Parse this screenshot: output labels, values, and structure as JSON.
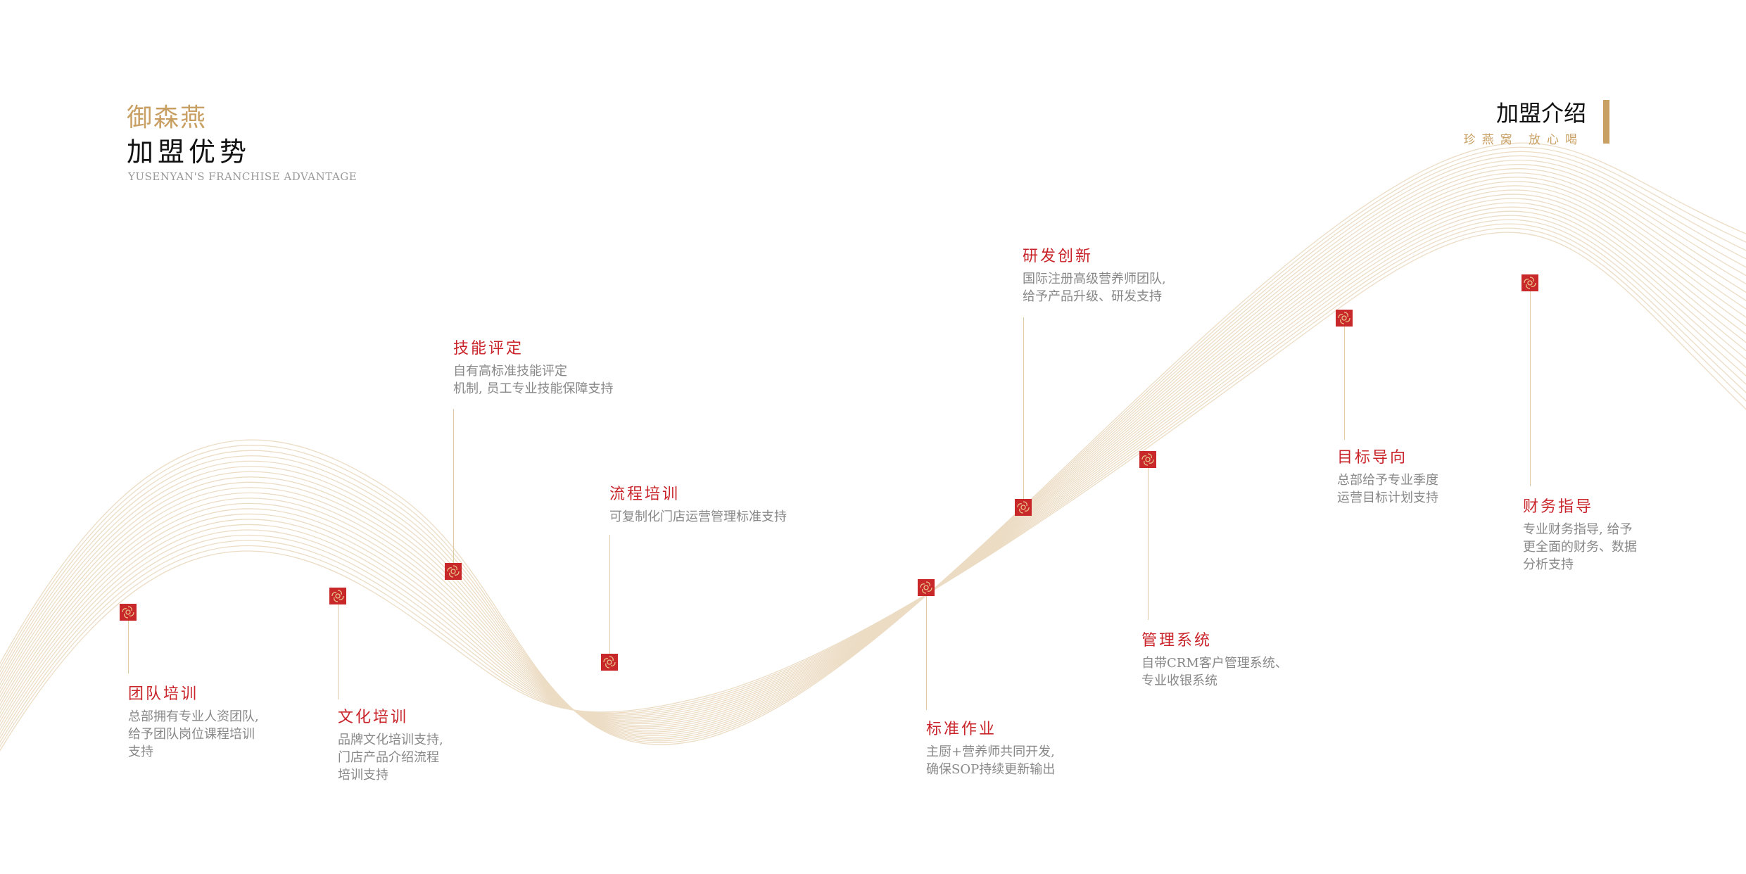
{
  "header": {
    "brand": "御森燕",
    "title": "加盟优势",
    "subtitle_en": "YUSENYAN'S FRANCHISE ADVANTAGE"
  },
  "section": {
    "title": "加盟介绍",
    "slogan": "珍燕窝 放心喝"
  },
  "colors": {
    "accent_gold": "#c9a063",
    "accent_red": "#c8242a",
    "text_gray": "#888888"
  },
  "marker_icon": "swirl-seal-icon",
  "items": [
    {
      "title": "团队培训",
      "desc": [
        "总部拥有专业人资团队,",
        "给予团队岗位课程培训",
        "支持"
      ]
    },
    {
      "title": "文化培训",
      "desc": [
        "品牌文化培训支持,",
        "门店产品介绍流程",
        "培训支持"
      ]
    },
    {
      "title": "技能评定",
      "desc": [
        "自有高标准技能评定",
        "机制, 员工专业技能保障支持"
      ]
    },
    {
      "title": "流程培训",
      "desc": [
        "可复制化门店运营管理标准支持"
      ]
    },
    {
      "title": "标准作业",
      "desc": [
        "主厨+营养师共同开发,",
        "确保SOP持续更新输出"
      ]
    },
    {
      "title": "研发创新",
      "desc": [
        "国际注册高级营养师团队,",
        "给予产品升级、研发支持"
      ]
    },
    {
      "title": "管理系统",
      "desc": [
        "自带CRM客户管理系统、",
        "专业收银系统"
      ]
    },
    {
      "title": "目标导向",
      "desc": [
        "总部给予专业季度",
        "运营目标计划支持"
      ]
    },
    {
      "title": "财务指导",
      "desc": [
        "专业财务指导, 给予",
        "更全面的财务、数据",
        "分析支持"
      ]
    }
  ]
}
